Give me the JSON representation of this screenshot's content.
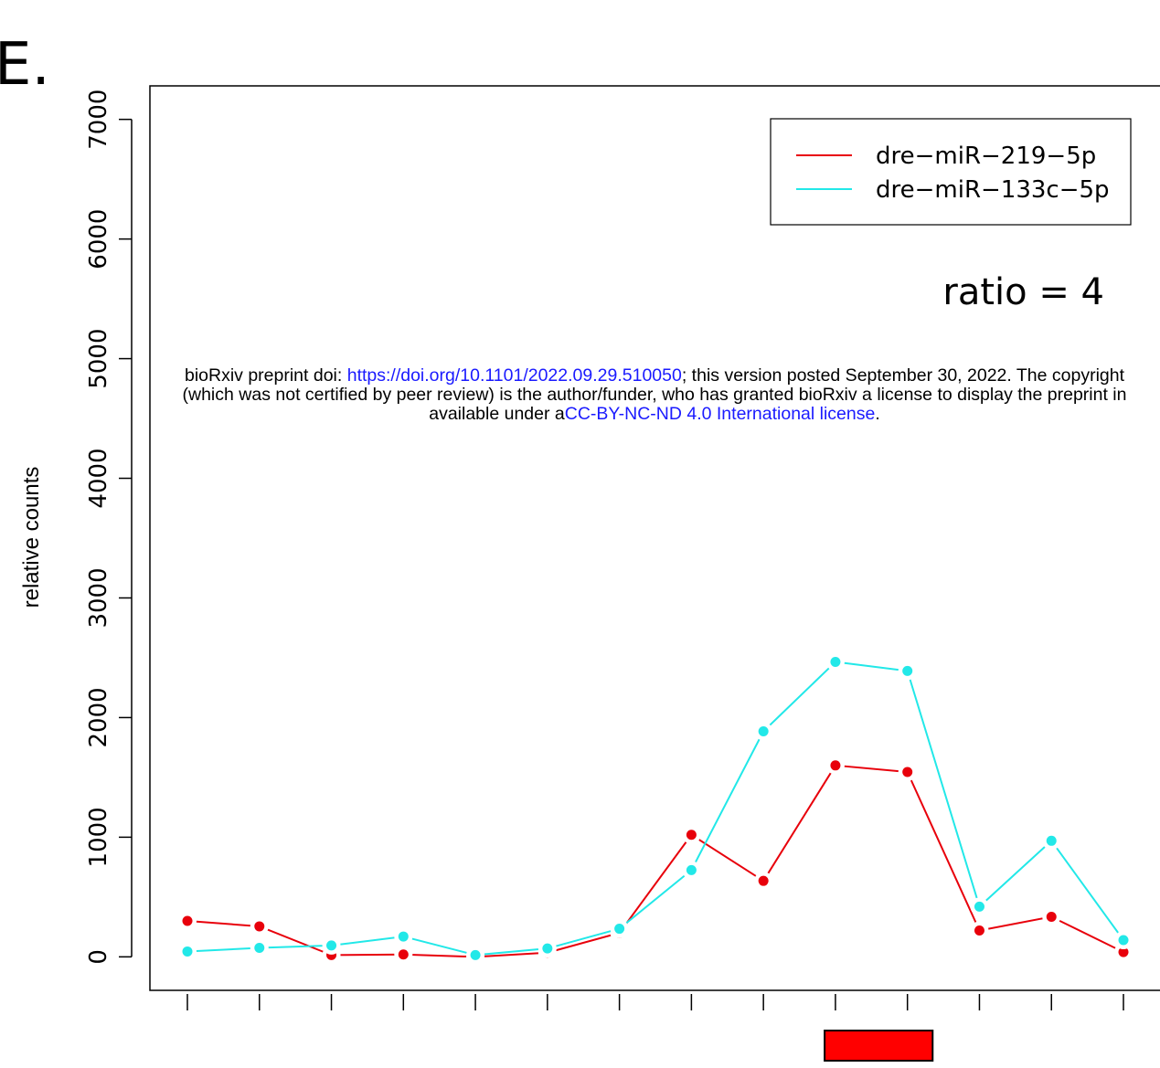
{
  "panel_label": "E.",
  "annotation": "ratio = 4",
  "preprint_notice": {
    "line1_prefix": "bioRxiv preprint doi: ",
    "line1_link": "https://doi.org/10.1101/2022.09.29.510050",
    "line1_suffix": "; this version posted September 30, 2022. The copyright",
    "line2": "(which was not certified by peer review) is the author/funder, who has granted bioRxiv a license to display the preprint in",
    "line3_prefix": "available under a",
    "line3_link": "CC-BY-NC-ND 4.0 International license",
    "line3_suffix": ".",
    "link_color": "#1a1aff"
  },
  "chart_data": {
    "type": "line",
    "title": "",
    "xlabel": "",
    "ylabel": "relative counts",
    "x": [
      1,
      2,
      3,
      4,
      5,
      6,
      7,
      8,
      9,
      10,
      11,
      12,
      13,
      14
    ],
    "ylim": [
      -280,
      7280
    ],
    "yticks": [
      0,
      1000,
      2000,
      3000,
      4000,
      5000,
      6000,
      7000
    ],
    "ytick_labels": [
      "0",
      "1000",
      "2000",
      "3000",
      "4000",
      "5000",
      "6000",
      "7000"
    ],
    "grid": false,
    "legend_position": "top-right",
    "series": [
      {
        "name": "dre−miR−219−5p",
        "color": "#e8000b",
        "values": [
          300,
          255,
          15,
          20,
          0,
          35,
          200,
          1020,
          635,
          1600,
          1545,
          220,
          335,
          40
        ]
      },
      {
        "name": "dre−miR−133c−5p",
        "color": "#22e8e8",
        "values": [
          45,
          75,
          95,
          170,
          15,
          70,
          235,
          725,
          1885,
          2465,
          2390,
          420,
          970,
          140
        ]
      }
    ],
    "highlight_bar": {
      "color": "#ff0000",
      "x_from": 9.85,
      "x_to": 11.35
    }
  }
}
